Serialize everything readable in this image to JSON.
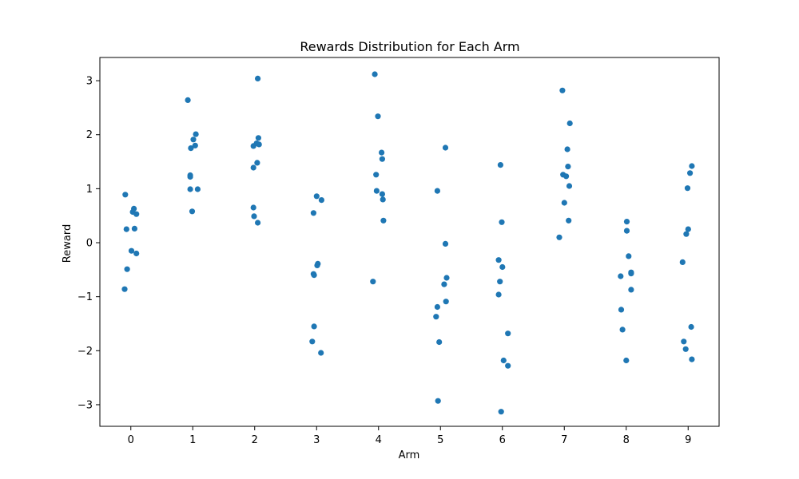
{
  "chart_data": {
    "type": "scatter",
    "title": "Rewards Distribution for Each Arm",
    "xlabel": "Arm",
    "ylabel": "Reward",
    "xlim": [
      -0.5,
      9.5
    ],
    "ylim": [
      -3.4,
      3.43
    ],
    "grid": false,
    "color": "#1f77b4",
    "xticks": [
      0,
      1,
      2,
      3,
      4,
      5,
      6,
      7,
      8,
      9
    ],
    "yticks": [
      -3,
      -2,
      -1,
      0,
      1,
      2,
      3
    ],
    "ytick_labels": [
      "−3",
      "−2",
      "−1",
      "0",
      "1",
      "2",
      "3"
    ],
    "points": [
      {
        "x": -0.09,
        "y": 0.89
      },
      {
        "x": -0.07,
        "y": 0.25
      },
      {
        "x": 0.03,
        "y": 0.57
      },
      {
        "x": 0.05,
        "y": 0.63
      },
      {
        "x": 0.09,
        "y": 0.53
      },
      {
        "x": 0.06,
        "y": 0.26
      },
      {
        "x": 0.01,
        "y": -0.15
      },
      {
        "x": 0.09,
        "y": -0.2
      },
      {
        "x": -0.06,
        "y": -0.49
      },
      {
        "x": -0.1,
        "y": -0.86
      },
      {
        "x": 0.92,
        "y": 2.64
      },
      {
        "x": 1.05,
        "y": 2.01
      },
      {
        "x": 1.01,
        "y": 1.91
      },
      {
        "x": 0.97,
        "y": 1.75
      },
      {
        "x": 1.04,
        "y": 1.8
      },
      {
        "x": 0.96,
        "y": 1.25
      },
      {
        "x": 0.96,
        "y": 1.22
      },
      {
        "x": 0.96,
        "y": 0.99
      },
      {
        "x": 1.08,
        "y": 0.99
      },
      {
        "x": 0.99,
        "y": 0.58
      },
      {
        "x": 2.05,
        "y": 3.04
      },
      {
        "x": 2.06,
        "y": 1.94
      },
      {
        "x": 2.03,
        "y": 1.84
      },
      {
        "x": 2.07,
        "y": 1.82
      },
      {
        "x": 1.98,
        "y": 1.79
      },
      {
        "x": 2.04,
        "y": 1.48
      },
      {
        "x": 1.98,
        "y": 1.39
      },
      {
        "x": 1.98,
        "y": 0.65
      },
      {
        "x": 1.99,
        "y": 0.49
      },
      {
        "x": 2.05,
        "y": 0.37
      },
      {
        "x": 3.0,
        "y": 0.86
      },
      {
        "x": 3.08,
        "y": 0.79
      },
      {
        "x": 2.95,
        "y": 0.55
      },
      {
        "x": 3.02,
        "y": -0.39
      },
      {
        "x": 3.01,
        "y": -0.42
      },
      {
        "x": 2.95,
        "y": -0.58
      },
      {
        "x": 2.96,
        "y": -0.6
      },
      {
        "x": 2.96,
        "y": -1.55
      },
      {
        "x": 2.93,
        "y": -1.83
      },
      {
        "x": 3.07,
        "y": -2.04
      },
      {
        "x": 3.94,
        "y": 3.12
      },
      {
        "x": 3.99,
        "y": 2.34
      },
      {
        "x": 4.05,
        "y": 1.67
      },
      {
        "x": 4.06,
        "y": 1.55
      },
      {
        "x": 3.96,
        "y": 1.26
      },
      {
        "x": 3.97,
        "y": 0.96
      },
      {
        "x": 4.06,
        "y": 0.9
      },
      {
        "x": 4.07,
        "y": 0.8
      },
      {
        "x": 4.08,
        "y": 0.41
      },
      {
        "x": 3.91,
        "y": -0.72
      },
      {
        "x": 5.08,
        "y": 1.76
      },
      {
        "x": 4.95,
        "y": 0.96
      },
      {
        "x": 5.08,
        "y": -0.02
      },
      {
        "x": 5.1,
        "y": -0.65
      },
      {
        "x": 5.06,
        "y": -0.77
      },
      {
        "x": 5.09,
        "y": -1.09
      },
      {
        "x": 4.95,
        "y": -1.19
      },
      {
        "x": 4.93,
        "y": -1.37
      },
      {
        "x": 4.98,
        "y": -1.84
      },
      {
        "x": 4.96,
        "y": -2.93
      },
      {
        "x": 5.97,
        "y": 1.44
      },
      {
        "x": 5.99,
        "y": 0.38
      },
      {
        "x": 5.94,
        "y": -0.32
      },
      {
        "x": 6.0,
        "y": -0.45
      },
      {
        "x": 5.96,
        "y": -0.72
      },
      {
        "x": 5.94,
        "y": -0.96
      },
      {
        "x": 6.09,
        "y": -1.68
      },
      {
        "x": 6.02,
        "y": -2.18
      },
      {
        "x": 6.09,
        "y": -2.28
      },
      {
        "x": 5.98,
        "y": -3.13
      },
      {
        "x": 6.97,
        "y": 2.82
      },
      {
        "x": 7.09,
        "y": 2.21
      },
      {
        "x": 7.05,
        "y": 1.73
      },
      {
        "x": 7.06,
        "y": 1.41
      },
      {
        "x": 6.98,
        "y": 1.26
      },
      {
        "x": 7.03,
        "y": 1.23
      },
      {
        "x": 7.08,
        "y": 1.05
      },
      {
        "x": 7.0,
        "y": 0.74
      },
      {
        "x": 7.07,
        "y": 0.41
      },
      {
        "x": 6.92,
        "y": 0.1
      },
      {
        "x": 8.01,
        "y": 0.39
      },
      {
        "x": 8.01,
        "y": 0.22
      },
      {
        "x": 8.04,
        "y": -0.25
      },
      {
        "x": 8.08,
        "y": -0.55
      },
      {
        "x": 8.08,
        "y": -0.57
      },
      {
        "x": 7.91,
        "y": -0.62
      },
      {
        "x": 8.08,
        "y": -0.87
      },
      {
        "x": 7.92,
        "y": -1.24
      },
      {
        "x": 7.94,
        "y": -1.61
      },
      {
        "x": 8.0,
        "y": -2.18
      },
      {
        "x": 9.06,
        "y": 1.42
      },
      {
        "x": 9.03,
        "y": 1.29
      },
      {
        "x": 8.99,
        "y": 1.01
      },
      {
        "x": 9.0,
        "y": 0.25
      },
      {
        "x": 8.97,
        "y": 0.16
      },
      {
        "x": 8.91,
        "y": -0.36
      },
      {
        "x": 9.05,
        "y": -1.56
      },
      {
        "x": 8.93,
        "y": -1.83
      },
      {
        "x": 8.96,
        "y": -1.97
      },
      {
        "x": 9.06,
        "y": -2.16
      }
    ]
  }
}
